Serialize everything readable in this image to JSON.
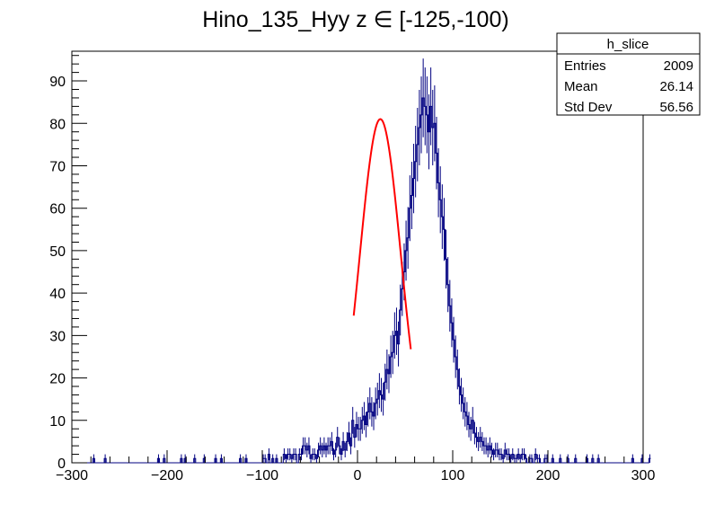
{
  "chart_data": {
    "type": "histogram",
    "title": "Hino_135_Hyy z  ∈ [-125,-100)",
    "xlabel": "",
    "ylabel": "",
    "xlim": [
      -300,
      300
    ],
    "ylim": [
      0,
      97
    ],
    "x_ticks": [
      -300,
      -200,
      -100,
      0,
      100,
      200,
      300
    ],
    "x_tick_labels": [
      "−300",
      "−200",
      "−100",
      "0",
      "100",
      "200",
      "300"
    ],
    "y_ticks": [
      0,
      10,
      20,
      30,
      40,
      50,
      60,
      70,
      80,
      90
    ],
    "y_tick_labels": [
      "0",
      "10",
      "20",
      "30",
      "40",
      "50",
      "60",
      "70",
      "80",
      "90"
    ],
    "grid": false,
    "colors": {
      "histogram": "#000080",
      "fit": "#ff0000"
    },
    "stats_box": {
      "title": "h_slice",
      "rows": [
        {
          "label": "Entries",
          "value": "2009"
        },
        {
          "label": "Mean",
          "value": "26.14"
        },
        {
          "label": "Std Dev",
          "value": "56.56"
        }
      ]
    },
    "histogram": {
      "name": "h_slice",
      "bin_edges_range": [
        -300,
        300
      ],
      "bin_count": 300,
      "bin_width": 2,
      "values": [
        0,
        0,
        0,
        0,
        0,
        0,
        0,
        0,
        0,
        0,
        0,
        1,
        0,
        0,
        0,
        0,
        0,
        1,
        0,
        0,
        0,
        0,
        0,
        0,
        0,
        0,
        0,
        0,
        0,
        0,
        0,
        0,
        0,
        0,
        0,
        0,
        0,
        0,
        0,
        0,
        0,
        0,
        0,
        0,
        0,
        1,
        0,
        0,
        1,
        0,
        0,
        0,
        0,
        0,
        0,
        0,
        0,
        1,
        0,
        1,
        0,
        0,
        0,
        0,
        1,
        0,
        0,
        0,
        0,
        1,
        0,
        0,
        0,
        0,
        0,
        1,
        0,
        0,
        1,
        0,
        0,
        0,
        0,
        0,
        0,
        0,
        0,
        0,
        1,
        0,
        0,
        1,
        0,
        0,
        0,
        0,
        0,
        0,
        0,
        0,
        1,
        1,
        0,
        2,
        0,
        1,
        0,
        1,
        0,
        0,
        0,
        2,
        1,
        2,
        2,
        1,
        2,
        2,
        0,
        2,
        2,
        4,
        4,
        3,
        4,
        1,
        2,
        2,
        1,
        3,
        4,
        3,
        4,
        3,
        4,
        4,
        5,
        2,
        3,
        6,
        4,
        2,
        5,
        3,
        5,
        7,
        4,
        10,
        6,
        9,
        8,
        8,
        10,
        11,
        9,
        12,
        14,
        12,
        11,
        14,
        15,
        17,
        16,
        15,
        19,
        22,
        21,
        25,
        26,
        30,
        31,
        28,
        36,
        41,
        45,
        50,
        53,
        60,
        63,
        67,
        71,
        75,
        79,
        82,
        86,
        84,
        82,
        78,
        84,
        79,
        80,
        73,
        66,
        62,
        58,
        55,
        48,
        42,
        37,
        33,
        29,
        25,
        22,
        18,
        16,
        14,
        12,
        11,
        9,
        8,
        10,
        7,
        6,
        5,
        6,
        5,
        4,
        4,
        3,
        4,
        3,
        2,
        3,
        3,
        2,
        2,
        1,
        3,
        2,
        2,
        1,
        2,
        1,
        1,
        2,
        1,
        2,
        2,
        1,
        0,
        1,
        1,
        0,
        2,
        1,
        1,
        0,
        0,
        1,
        1,
        0,
        0,
        1,
        0,
        0,
        0,
        1,
        0,
        0,
        0,
        1,
        0,
        0,
        0,
        1,
        0,
        0,
        0,
        0,
        0,
        1,
        0,
        0,
        1,
        0,
        0,
        1,
        0,
        0,
        0,
        0,
        0,
        0,
        0,
        0,
        0,
        0,
        0,
        0,
        0,
        0,
        0,
        0,
        0,
        1,
        0,
        0,
        0,
        0,
        1,
        0,
        0,
        0,
        1
      ]
    },
    "fit": {
      "type": "gaussian",
      "x_range": [
        -4,
        56
      ],
      "amplitude": 81,
      "mean": 24,
      "sigma": 21.5
    }
  }
}
